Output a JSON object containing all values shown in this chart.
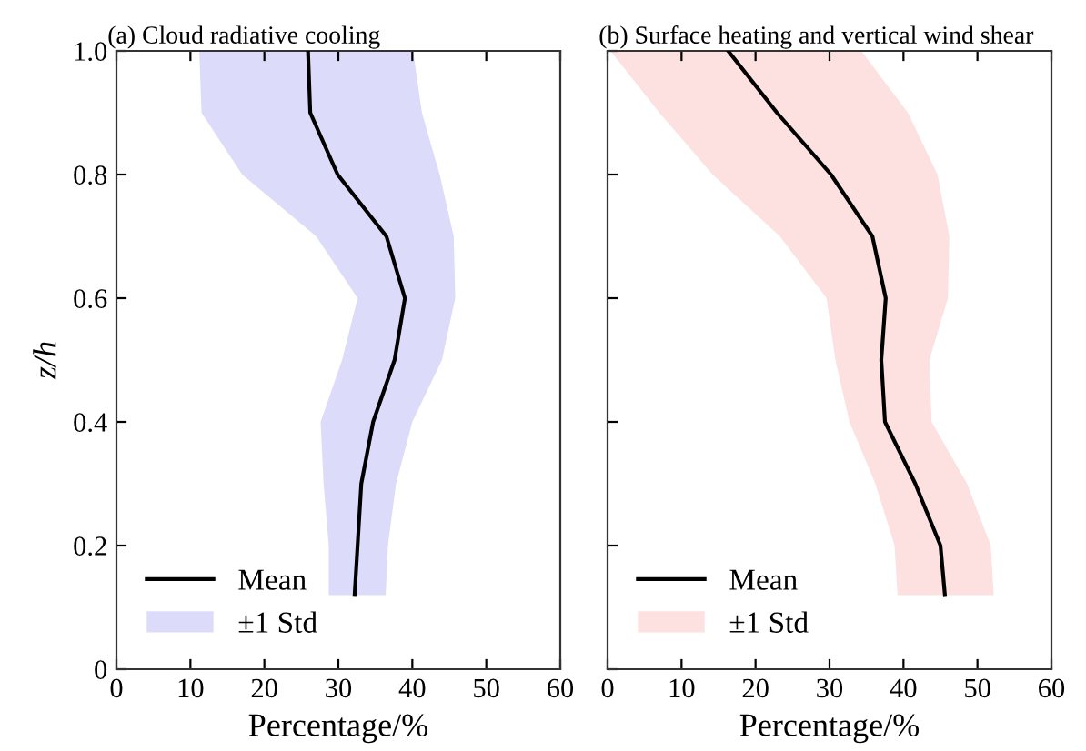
{
  "chart_data": [
    {
      "type": "line",
      "title": "(a) Cloud radiative cooling",
      "xlabel": "Percentage/%",
      "ylabel": "z/h",
      "orientation": "horizontal",
      "x": [
        1.0,
        0.9,
        0.8,
        0.7,
        0.6,
        0.5,
        0.4,
        0.3,
        0.2,
        0.12
      ],
      "series": [
        {
          "name": "Mean",
          "type": "line",
          "color": "#000000",
          "values": [
            25.9,
            26.2,
            29.9,
            36.5,
            39.0,
            37.6,
            34.7,
            33.1,
            32.6,
            32.2
          ]
        },
        {
          "name": "±1 Std",
          "type": "area",
          "color": "#dcdcfa",
          "values": [
            null,
            null,
            null,
            null,
            null,
            null,
            null,
            null,
            null,
            null
          ],
          "lower": [
            11.2,
            11.5,
            17,
            27,
            32.6,
            30.5,
            27.6,
            28.0,
            28.7,
            28.7
          ],
          "upper": [
            40.1,
            41.3,
            43.7,
            45.6,
            45.8,
            44.0,
            40.0,
            37.8,
            36.7,
            36.4
          ]
        }
      ],
      "xlim": [
        0,
        60
      ],
      "xticks": [
        0,
        10,
        20,
        30,
        40,
        50,
        60
      ],
      "ylim": [
        0,
        1.0
      ],
      "yticks": [
        0,
        0.2,
        0.4,
        0.6,
        0.8,
        {
          "value": 1.0,
          "label": "1.0"
        }
      ],
      "legend": "lower left",
      "grid": false
    },
    {
      "type": "line",
      "title": "(b) Surface heating and vertical wind shear",
      "xlabel": "Percentage/%",
      "orientation": "horizontal",
      "x": [
        1.0,
        0.9,
        0.8,
        0.7,
        0.6,
        0.5,
        0.4,
        0.3,
        0.2,
        0.12
      ],
      "series": [
        {
          "name": "Mean",
          "type": "line",
          "color": "#000000",
          "values": [
            16.3,
            22.9,
            30.2,
            35.8,
            37.6,
            37.0,
            37.5,
            41.6,
            45.0,
            45.6
          ]
        },
        {
          "name": "±1 Std",
          "type": "area",
          "color": "#fde0e0",
          "values": [
            null,
            null,
            null,
            null,
            null,
            null,
            null,
            null,
            null,
            null
          ],
          "lower": [
            0.4,
            7.0,
            14.2,
            23.3,
            29.6,
            30.8,
            32.7,
            36.2,
            38.8,
            39.2
          ],
          "upper": [
            34.3,
            40.6,
            44.6,
            46.2,
            46.0,
            43.5,
            43.8,
            48.6,
            51.8,
            52.2
          ]
        }
      ],
      "xlim": [
        0,
        60
      ],
      "xticks": [
        0,
        10,
        20,
        30,
        40,
        50,
        60
      ],
      "ylim": [
        0,
        1.0
      ],
      "yticks": [
        0,
        0.2,
        0.4,
        0.6,
        0.8,
        1.0
      ],
      "tick_labels": "x",
      "legend": "lower left",
      "grid": false
    }
  ]
}
